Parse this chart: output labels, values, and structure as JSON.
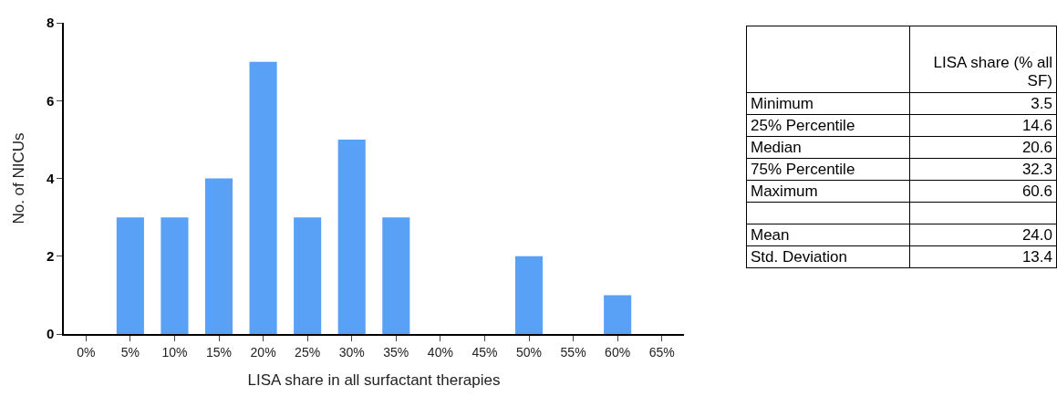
{
  "chart_data": [
    {
      "type": "bar",
      "xlabel": "LISA share in all surfactant therapies",
      "ylabel": "No. of NICUs",
      "categories": [
        "0%",
        "5%",
        "10%",
        "15%",
        "20%",
        "25%",
        "30%",
        "35%",
        "40%",
        "45%",
        "50%",
        "55%",
        "60%",
        "65%"
      ],
      "values": [
        0,
        3,
        3,
        4,
        7,
        3,
        5,
        3,
        0,
        0,
        2,
        0,
        1,
        0
      ],
      "color": "#59a0f7",
      "ylim": [
        0,
        8
      ],
      "yticks": [
        0,
        2,
        4,
        6,
        8
      ],
      "grid": false,
      "legend": false
    },
    {
      "type": "other",
      "title": "LISA share (% all SF)",
      "categories": [
        "Minimum",
        "25% Percentile",
        "Median",
        "75% Percentile",
        "Maximum",
        null,
        "Mean",
        "Std. Deviation"
      ],
      "values": [
        3.5,
        14.6,
        20.6,
        32.3,
        60.6,
        null,
        24.0,
        13.4
      ],
      "value_labels": [
        "3.5",
        "14.6",
        "20.6",
        "32.3",
        "60.6",
        null,
        "24.0",
        "13.4"
      ]
    }
  ]
}
